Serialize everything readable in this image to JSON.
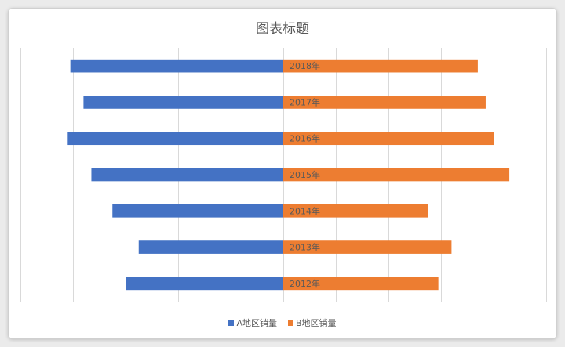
{
  "chart_data": {
    "type": "bar",
    "orientation": "horizontal-diverging",
    "title": "图表标题",
    "categories": [
      "2018年",
      "2017年",
      "2016年",
      "2015年",
      "2014年",
      "2013年",
      "2012年"
    ],
    "series": [
      {
        "name": "A地区销量",
        "values": [
          810,
          760,
          820,
          730,
          650,
          550,
          600
        ],
        "color": "#4472C4",
        "direction": "left"
      },
      {
        "name": "B地区销量",
        "values": [
          740,
          770,
          800,
          860,
          550,
          640,
          590
        ],
        "color": "#ED7D31",
        "direction": "right"
      }
    ],
    "xlim": [
      -1000,
      1000
    ],
    "x_tick_step": 200,
    "grid": true,
    "legend_position": "bottom"
  }
}
